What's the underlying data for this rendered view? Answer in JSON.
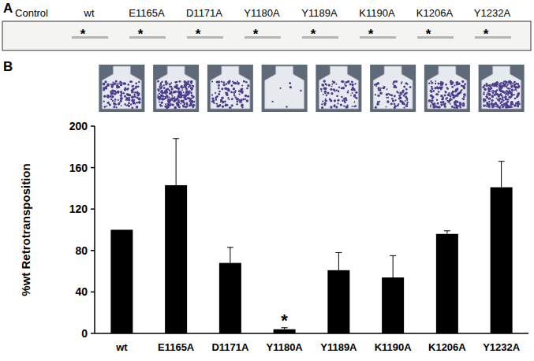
{
  "panel_labels": [
    "A",
    "B"
  ],
  "blot": {
    "lanes": [
      "Control",
      "wt",
      "E1165A",
      "D1171A",
      "Y1180A",
      "Y1189A",
      "K1190A",
      "K1206A",
      "Y1232A"
    ],
    "marked": [
      false,
      true,
      true,
      true,
      true,
      true,
      true,
      true,
      true
    ],
    "marker": "*"
  },
  "chart_data": {
    "type": "bar",
    "y_label": "%wt Retrotransposition",
    "categories": [
      "wt",
      "E1165A",
      "D1171A",
      "Y1180A",
      "Y1189A",
      "K1190A",
      "K1206A",
      "Y1232A"
    ],
    "values": [
      100,
      143,
      68,
      4,
      61,
      54,
      96,
      141
    ],
    "errors": [
      0,
      45,
      15,
      1.5,
      17,
      21,
      3,
      25
    ],
    "color": "#000000",
    "ylim": [
      0,
      200
    ],
    "yticks": [
      0,
      40,
      80,
      120,
      160,
      200
    ],
    "grid": false,
    "annotations": [
      {
        "text": "*",
        "category": "Y1180A"
      }
    ]
  }
}
